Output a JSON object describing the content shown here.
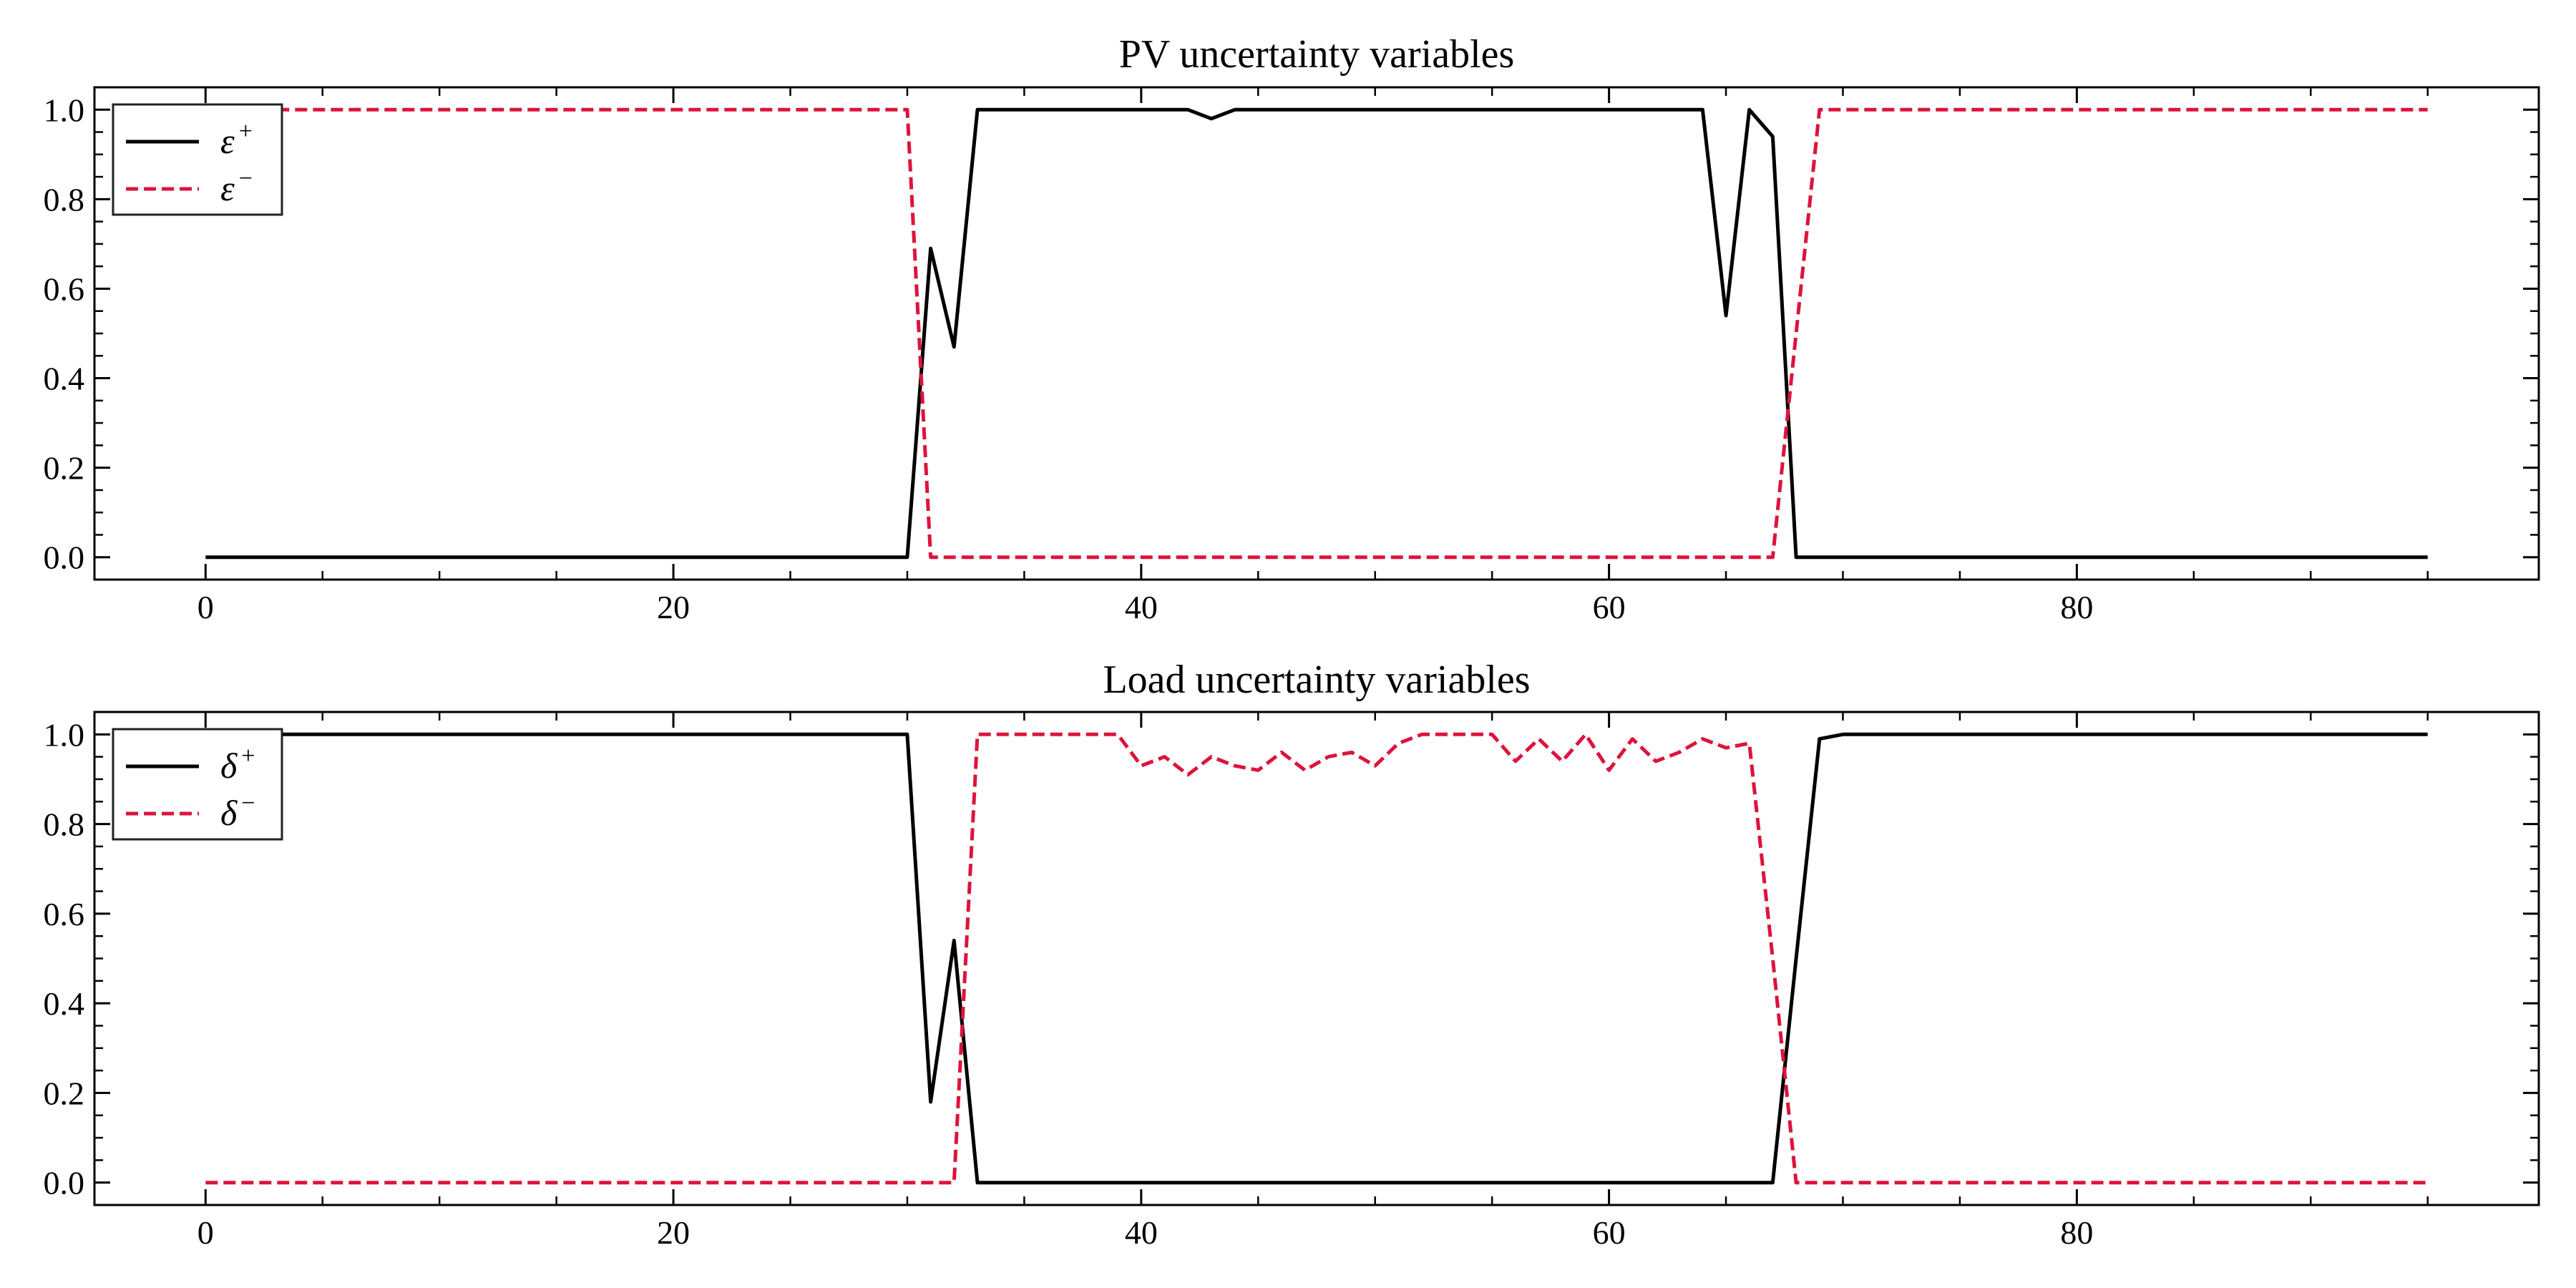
{
  "chart_data": [
    {
      "type": "line",
      "title": "PV uncertainty variables",
      "xlabel": "",
      "ylabel": "",
      "xlim": [
        -4.75,
        99.75
      ],
      "ylim": [
        -0.05,
        1.05
      ],
      "xticks": [
        0,
        20,
        40,
        60,
        80
      ],
      "xtick_labels": [
        "0",
        "20",
        "40",
        "60",
        "80"
      ],
      "yticks": [
        0.0,
        0.2,
        0.4,
        0.6,
        0.8,
        1.0
      ],
      "ytick_labels": [
        "0.0",
        "0.2",
        "0.4",
        "0.6",
        "0.8",
        "1.0"
      ],
      "grid": false,
      "legend_position": "top-left",
      "series": [
        {
          "name": "ε+",
          "legend_symbol": "ε",
          "legend_superscript": "+",
          "color": "#000000",
          "dash": "solid",
          "x": [
            0,
            1,
            2,
            3,
            4,
            5,
            6,
            7,
            8,
            9,
            10,
            11,
            12,
            13,
            14,
            15,
            16,
            17,
            18,
            19,
            20,
            21,
            22,
            23,
            24,
            25,
            26,
            27,
            28,
            29,
            30,
            31,
            32,
            33,
            34,
            35,
            36,
            37,
            38,
            39,
            40,
            41,
            42,
            43,
            44,
            45,
            46,
            47,
            48,
            49,
            50,
            51,
            52,
            53,
            54,
            55,
            56,
            57,
            58,
            59,
            60,
            61,
            62,
            63,
            64,
            65,
            66,
            67,
            68,
            69,
            70,
            71,
            72,
            73,
            74,
            75,
            76,
            77,
            78,
            79,
            80,
            81,
            82,
            83,
            84,
            85,
            86,
            87,
            88,
            89,
            90,
            91,
            92,
            93,
            94,
            95
          ],
          "y": [
            0,
            0,
            0,
            0,
            0,
            0,
            0,
            0,
            0,
            0,
            0,
            0,
            0,
            0,
            0,
            0,
            0,
            0,
            0,
            0,
            0,
            0,
            0,
            0,
            0,
            0,
            0,
            0,
            0,
            0,
            0,
            0.69,
            0.47,
            1,
            1,
            1,
            1,
            1,
            1,
            1,
            1,
            1,
            1,
            0.98,
            1,
            1,
            1,
            1,
            1,
            1,
            1,
            1,
            1,
            1,
            1,
            1,
            1,
            1,
            1,
            1,
            1,
            1,
            1,
            1,
            1,
            0.54,
            1,
            0.94,
            0,
            0,
            0,
            0,
            0,
            0,
            0,
            0,
            0,
            0,
            0,
            0,
            0,
            0,
            0,
            0,
            0,
            0,
            0,
            0,
            0,
            0,
            0,
            0,
            0,
            0,
            0,
            0
          ]
        },
        {
          "name": "ε−",
          "legend_symbol": "ε",
          "legend_superscript": "−",
          "color": "#dc143c",
          "dash": "dashed",
          "x": [
            0,
            1,
            2,
            3,
            4,
            5,
            6,
            7,
            8,
            9,
            10,
            11,
            12,
            13,
            14,
            15,
            16,
            17,
            18,
            19,
            20,
            21,
            22,
            23,
            24,
            25,
            26,
            27,
            28,
            29,
            30,
            31,
            32,
            33,
            34,
            35,
            36,
            37,
            38,
            39,
            40,
            41,
            42,
            43,
            44,
            45,
            46,
            47,
            48,
            49,
            50,
            51,
            52,
            53,
            54,
            55,
            56,
            57,
            58,
            59,
            60,
            61,
            62,
            63,
            64,
            65,
            66,
            67,
            68,
            69,
            70,
            71,
            72,
            73,
            74,
            75,
            76,
            77,
            78,
            79,
            80,
            81,
            82,
            83,
            84,
            85,
            86,
            87,
            88,
            89,
            90,
            91,
            92,
            93,
            94,
            95
          ],
          "y": [
            1,
            1,
            1,
            1,
            1,
            1,
            1,
            1,
            1,
            1,
            1,
            1,
            1,
            1,
            1,
            1,
            1,
            1,
            1,
            1,
            1,
            1,
            1,
            1,
            1,
            1,
            1,
            1,
            1,
            1,
            1,
            0,
            0,
            0,
            0,
            0,
            0,
            0,
            0,
            0,
            0,
            0,
            0,
            0,
            0,
            0,
            0,
            0,
            0,
            0,
            0,
            0,
            0,
            0,
            0,
            0,
            0,
            0,
            0,
            0,
            0,
            0,
            0,
            0,
            0,
            0,
            0,
            0,
            0.5,
            1,
            1,
            1,
            1,
            1,
            1,
            1,
            1,
            1,
            1,
            1,
            1,
            1,
            1,
            1,
            1,
            1,
            1,
            1,
            1,
            1,
            1,
            1,
            1,
            1,
            1,
            1
          ]
        }
      ]
    },
    {
      "type": "line",
      "title": "Load uncertainty variables",
      "xlabel": "",
      "ylabel": "",
      "xlim": [
        -4.75,
        99.75
      ],
      "ylim": [
        -0.05,
        1.05
      ],
      "xticks": [
        0,
        20,
        40,
        60,
        80
      ],
      "xtick_labels": [
        "0",
        "20",
        "40",
        "60",
        "80"
      ],
      "yticks": [
        0.0,
        0.2,
        0.4,
        0.6,
        0.8,
        1.0
      ],
      "ytick_labels": [
        "0.0",
        "0.2",
        "0.4",
        "0.6",
        "0.8",
        "1.0"
      ],
      "grid": false,
      "legend_position": "top-left",
      "series": [
        {
          "name": "δ+",
          "legend_symbol": "δ",
          "legend_superscript": "+",
          "color": "#000000",
          "dash": "solid",
          "x": [
            0,
            1,
            2,
            3,
            4,
            5,
            6,
            7,
            8,
            9,
            10,
            11,
            12,
            13,
            14,
            15,
            16,
            17,
            18,
            19,
            20,
            21,
            22,
            23,
            24,
            25,
            26,
            27,
            28,
            29,
            30,
            31,
            32,
            33,
            34,
            35,
            36,
            37,
            38,
            39,
            40,
            41,
            42,
            43,
            44,
            45,
            46,
            47,
            48,
            49,
            50,
            51,
            52,
            53,
            54,
            55,
            56,
            57,
            58,
            59,
            60,
            61,
            62,
            63,
            64,
            65,
            66,
            67,
            68,
            69,
            70,
            71,
            72,
            73,
            74,
            75,
            76,
            77,
            78,
            79,
            80,
            81,
            82,
            83,
            84,
            85,
            86,
            87,
            88,
            89,
            90,
            91,
            92,
            93,
            94,
            95
          ],
          "y": [
            1,
            1,
            1,
            1,
            1,
            1,
            1,
            1,
            1,
            1,
            1,
            1,
            1,
            1,
            1,
            1,
            1,
            1,
            1,
            1,
            1,
            1,
            1,
            1,
            1,
            1,
            1,
            1,
            1,
            1,
            1,
            0.18,
            0.54,
            0,
            0,
            0,
            0,
            0,
            0,
            0,
            0,
            0,
            0,
            0,
            0,
            0,
            0,
            0,
            0,
            0,
            0,
            0,
            0,
            0,
            0,
            0,
            0,
            0,
            0,
            0,
            0,
            0,
            0,
            0,
            0,
            0,
            0,
            0,
            0.5,
            0.99,
            1,
            1,
            1,
            1,
            1,
            1,
            1,
            1,
            1,
            1,
            1,
            1,
            1,
            1,
            1,
            1,
            1,
            1,
            1,
            1,
            1,
            1,
            1,
            1,
            1,
            1
          ]
        },
        {
          "name": "δ−",
          "legend_symbol": "δ",
          "legend_superscript": "−",
          "color": "#dc143c",
          "dash": "dashed",
          "x": [
            0,
            1,
            2,
            3,
            4,
            5,
            6,
            7,
            8,
            9,
            10,
            11,
            12,
            13,
            14,
            15,
            16,
            17,
            18,
            19,
            20,
            21,
            22,
            23,
            24,
            25,
            26,
            27,
            28,
            29,
            30,
            31,
            32,
            33,
            34,
            35,
            36,
            37,
            38,
            39,
            40,
            41,
            42,
            43,
            44,
            45,
            46,
            47,
            48,
            49,
            50,
            51,
            52,
            53,
            54,
            55,
            56,
            57,
            58,
            59,
            60,
            61,
            62,
            63,
            64,
            65,
            66,
            67,
            68,
            69,
            70,
            71,
            72,
            73,
            74,
            75,
            76,
            77,
            78,
            79,
            80,
            81,
            82,
            83,
            84,
            85,
            86,
            87,
            88,
            89,
            90,
            91,
            92,
            93,
            94,
            95
          ],
          "y": [
            0,
            0,
            0,
            0,
            0,
            0,
            0,
            0,
            0,
            0,
            0,
            0,
            0,
            0,
            0,
            0,
            0,
            0,
            0,
            0,
            0,
            0,
            0,
            0,
            0,
            0,
            0,
            0,
            0,
            0,
            0,
            0,
            0,
            1,
            1,
            1,
            1,
            1,
            1,
            1,
            0.93,
            0.95,
            0.91,
            0.95,
            0.93,
            0.92,
            0.96,
            0.92,
            0.95,
            0.96,
            0.93,
            0.98,
            1,
            1,
            1,
            1,
            0.94,
            0.99,
            0.94,
            1,
            0.92,
            0.99,
            0.94,
            0.96,
            0.99,
            0.97,
            0.98,
            0.5,
            0,
            0,
            0,
            0,
            0,
            0,
            0,
            0,
            0,
            0,
            0,
            0,
            0,
            0,
            0,
            0,
            0,
            0,
            0,
            0,
            0,
            0,
            0,
            0,
            0,
            0,
            0,
            0
          ]
        }
      ]
    }
  ]
}
